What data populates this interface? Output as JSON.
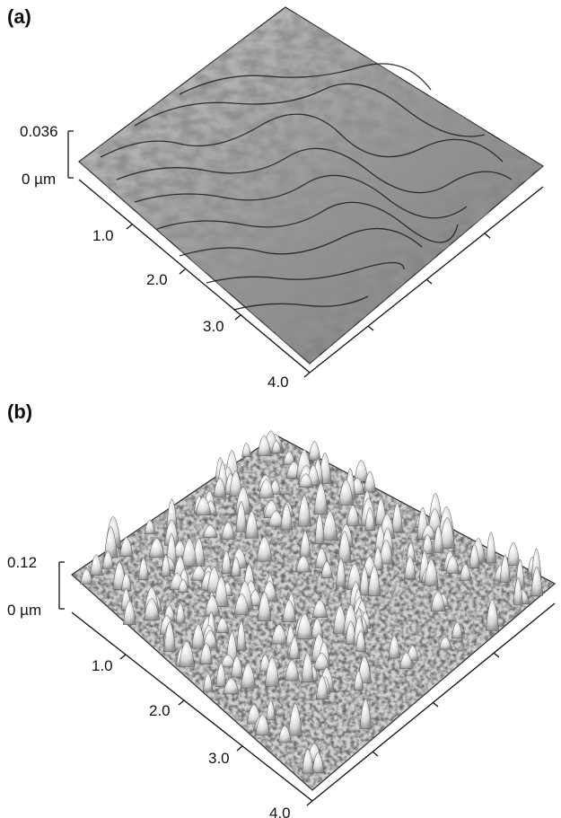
{
  "panels": [
    {
      "label": "(a)",
      "z_top": "0.036",
      "z_bottom": "0 µm",
      "axis_ticks": [
        "1.0",
        "2.0",
        "3.0",
        "4.0"
      ],
      "texture": "rough-ridges"
    },
    {
      "label": "(b)",
      "z_top": "0.12",
      "z_bottom": "0 µm",
      "axis_ticks": [
        "1.0",
        "2.0",
        "3.0",
        "4.0"
      ],
      "texture": "conical-peaks"
    }
  ]
}
